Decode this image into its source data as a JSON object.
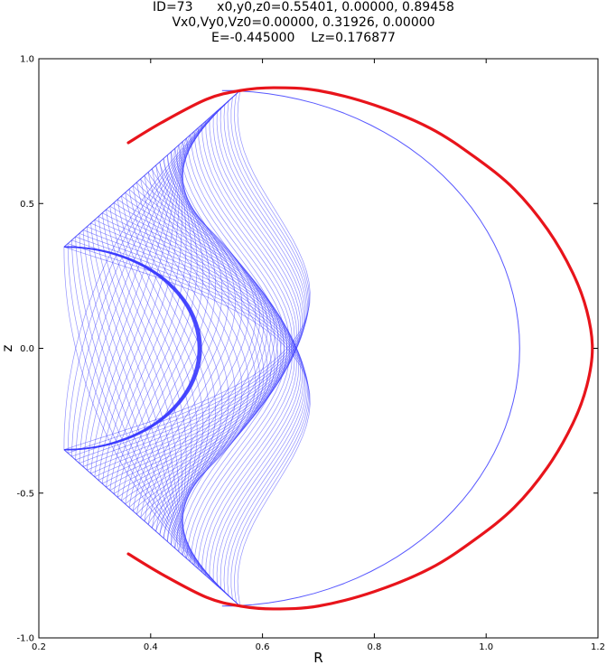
{
  "chart_data": {
    "type": "line",
    "title_lines": [
      "ID=73      x0,y0,z0=0.55401, 0.00000, 0.89458",
      "Vx0,Vy0,Vz0=0.00000, 0.31926, 0.00000",
      "E=-0.445000    Lz=0.176877"
    ],
    "xlabel": "R",
    "ylabel": "z",
    "xlim": [
      0.2,
      1.2
    ],
    "ylim": [
      -1.0,
      1.0
    ],
    "xticks": [
      "0.2",
      "0.4",
      "0.6",
      "0.8",
      "1.0",
      "1.2"
    ],
    "yticks": [
      "-1.0",
      "-0.5",
      "0.0",
      "0.5",
      "1.0"
    ],
    "grid": false,
    "series": [
      {
        "kind": "orbit-mesh",
        "color": "#3b3bff",
        "corners": {
          "inner_R": 0.245,
          "inner_z": 0.35,
          "top_R": 0.56,
          "top_z": 0.89,
          "outer_R": 1.06,
          "inner_arc_min_R": 0.485
        }
      },
      {
        "kind": "zero-velocity-curve",
        "color": "#e8141b",
        "points": [
          [
            0.36,
            0.71
          ],
          [
            0.42,
            0.78
          ],
          [
            0.5,
            0.86
          ],
          [
            0.56,
            0.89
          ],
          [
            0.62,
            0.9
          ],
          [
            0.7,
            0.89
          ],
          [
            0.8,
            0.84
          ],
          [
            0.9,
            0.76
          ],
          [
            0.98,
            0.66
          ],
          [
            1.05,
            0.55
          ],
          [
            1.11,
            0.41
          ],
          [
            1.155,
            0.26
          ],
          [
            1.18,
            0.13
          ],
          [
            1.19,
            0.0
          ],
          [
            1.18,
            -0.13
          ],
          [
            1.155,
            -0.26
          ],
          [
            1.11,
            -0.41
          ],
          [
            1.05,
            -0.55
          ],
          [
            0.98,
            -0.66
          ],
          [
            0.9,
            -0.76
          ],
          [
            0.8,
            -0.84
          ],
          [
            0.7,
            -0.89
          ],
          [
            0.62,
            -0.9
          ],
          [
            0.56,
            -0.89
          ],
          [
            0.5,
            -0.86
          ],
          [
            0.42,
            -0.78
          ],
          [
            0.36,
            -0.71
          ]
        ]
      }
    ]
  }
}
